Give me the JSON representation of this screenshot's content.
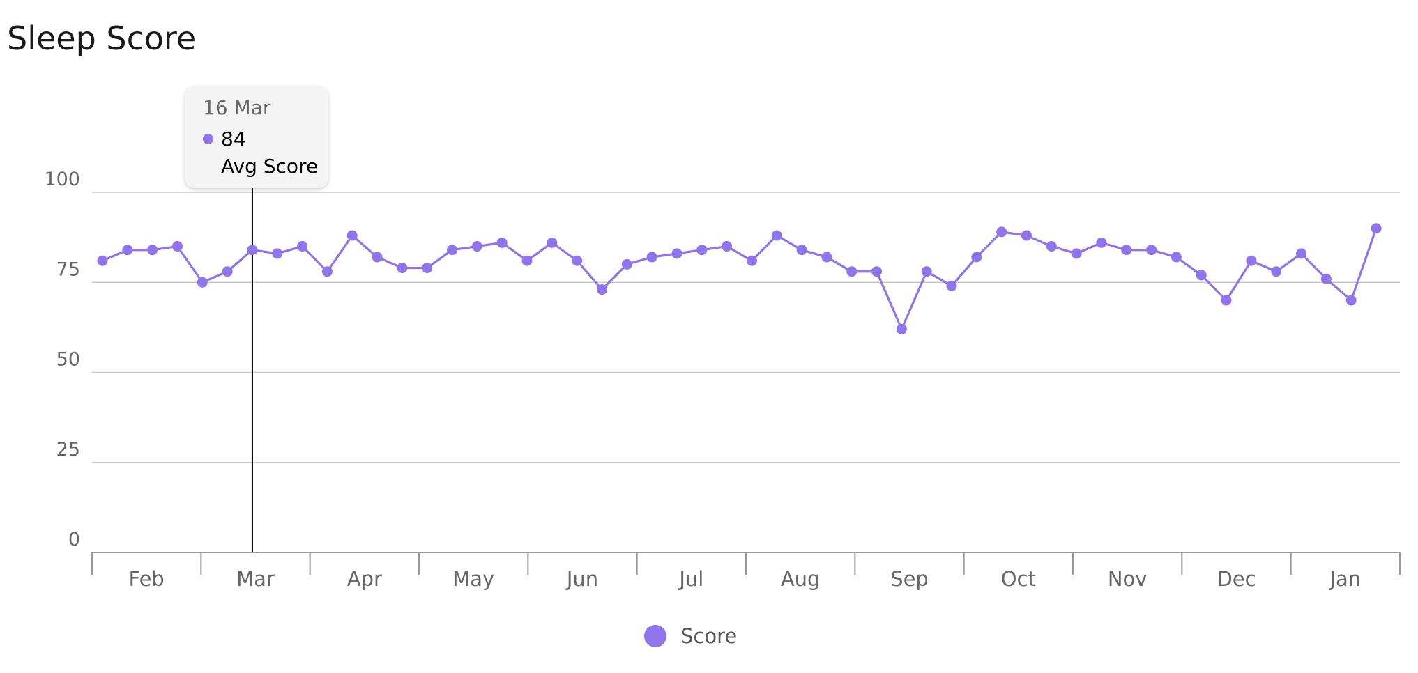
{
  "chart_data": {
    "type": "line",
    "title": "Sleep Score",
    "xlabel": "",
    "ylabel": "",
    "ylim": [
      0,
      100
    ],
    "yticks": [
      0,
      25,
      50,
      75,
      100
    ],
    "month_labels": [
      "Feb",
      "Mar",
      "Apr",
      "May",
      "Jun",
      "Jul",
      "Aug",
      "Sep",
      "Oct",
      "Nov",
      "Dec",
      "Jan"
    ],
    "grid": true,
    "legend_position": "bottom-center",
    "series": [
      {
        "name": "Score",
        "color": "#8f74ec",
        "values": [
          81,
          84,
          84,
          85,
          75,
          78,
          84,
          83,
          85,
          78,
          88,
          82,
          79,
          79,
          84,
          85,
          86,
          81,
          86,
          81,
          73,
          80,
          82,
          83,
          84,
          85,
          81,
          88,
          84,
          82,
          78,
          78,
          62,
          78,
          74,
          82,
          89,
          88,
          85,
          83,
          86,
          84,
          84,
          82,
          77,
          70,
          81,
          78,
          83,
          76,
          70,
          90
        ]
      }
    ],
    "tooltip": {
      "date": "16 Mar",
      "value": "84",
      "label": "Avg Score"
    }
  }
}
